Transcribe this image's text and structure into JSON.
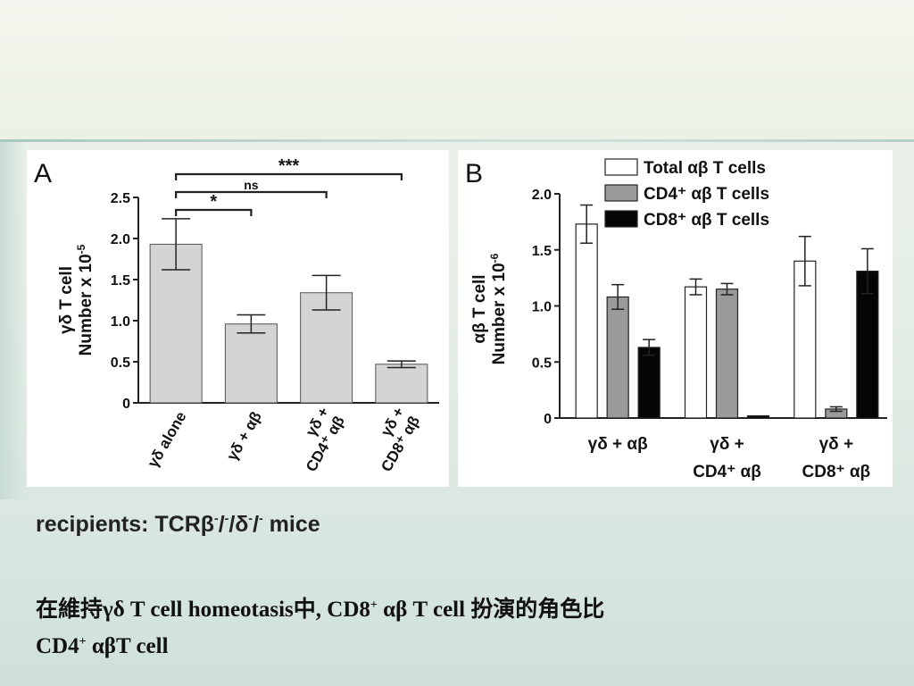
{
  "chart_data": [
    {
      "type": "bar",
      "panel_label": "A",
      "ylabel_line1": "γδ T cell",
      "ylabel_line2": "Number x 10",
      "ylabel_exponent": "-5",
      "ylim": [
        0,
        2.5
      ],
      "yticks": [
        {
          "value": 0,
          "label": "0"
        },
        {
          "value": 0.5,
          "label": "0.5"
        },
        {
          "value": 1.0,
          "label": "1.0"
        },
        {
          "value": 1.5,
          "label": "1.5"
        },
        {
          "value": 2.0,
          "label": "2.0"
        },
        {
          "value": 2.5,
          "label": "2.5"
        }
      ],
      "categories": [
        {
          "line1": "γδ alone",
          "line2": ""
        },
        {
          "line1": "γδ + αβ",
          "line2": ""
        },
        {
          "line1": "γδ +",
          "line2": "CD4⁺ αβ"
        },
        {
          "line1": "γδ +",
          "line2": "CD8⁺ αβ"
        }
      ],
      "values": [
        1.93,
        0.96,
        1.34,
        0.47
      ],
      "errors": [
        0.31,
        0.11,
        0.21,
        0.04
      ],
      "bar_color": "#d4d4d4",
      "significance": [
        {
          "from": 0,
          "to": 1,
          "label": "*"
        },
        {
          "from": 0,
          "to": 2,
          "label": "ns"
        },
        {
          "from": 0,
          "to": 3,
          "label": "***"
        }
      ]
    },
    {
      "type": "bar",
      "panel_label": "B",
      "ylabel_line1": "αβ T cell",
      "ylabel_line2": "Number x 10",
      "ylabel_exponent": "-6",
      "ylim": [
        0,
        2.0
      ],
      "yticks": [
        {
          "value": 0,
          "label": "0"
        },
        {
          "value": 0.5,
          "label": "0.5"
        },
        {
          "value": 1.0,
          "label": "1.0"
        },
        {
          "value": 1.5,
          "label": "1.5"
        },
        {
          "value": 2.0,
          "label": "2.0"
        }
      ],
      "categories": [
        {
          "line1": "γδ + αβ",
          "line2": ""
        },
        {
          "line1": "γδ +",
          "line2": "CD4⁺ αβ"
        },
        {
          "line1": "γδ +",
          "line2": "CD8⁺ αβ"
        }
      ],
      "legend_position": "top-right",
      "series": [
        {
          "name": "Total αβ T cells",
          "color": "#ffffff",
          "values": [
            1.73,
            1.17,
            1.4
          ],
          "errors": [
            0.17,
            0.07,
            0.22
          ]
        },
        {
          "name": "CD4⁺ αβ T cells",
          "color": "#9a9a9a",
          "values": [
            1.08,
            1.15,
            0.08
          ],
          "errors": [
            0.11,
            0.05,
            0.02
          ]
        },
        {
          "name": "CD8⁺ αβ T cells",
          "color": "#050505",
          "values": [
            0.63,
            0.02,
            1.31
          ],
          "errors": [
            0.07,
            0.0,
            0.2
          ]
        }
      ]
    }
  ],
  "caption": {
    "prefix": "recipients: TCRβ",
    "sup1": "-",
    "mid1": "/",
    "sup2": "-",
    "mid2": "/δ",
    "sup3": "-",
    "mid3": "/",
    "sup4": "-",
    "suffix": " mice"
  },
  "note": {
    "part1": "在維持γδ T cell homeotasis中, CD8",
    "sup1": "+",
    "part2": " αβ T cell 扮演的角色比",
    "part3": "CD4",
    "sup2": "+",
    "part4": " αβT cell"
  }
}
